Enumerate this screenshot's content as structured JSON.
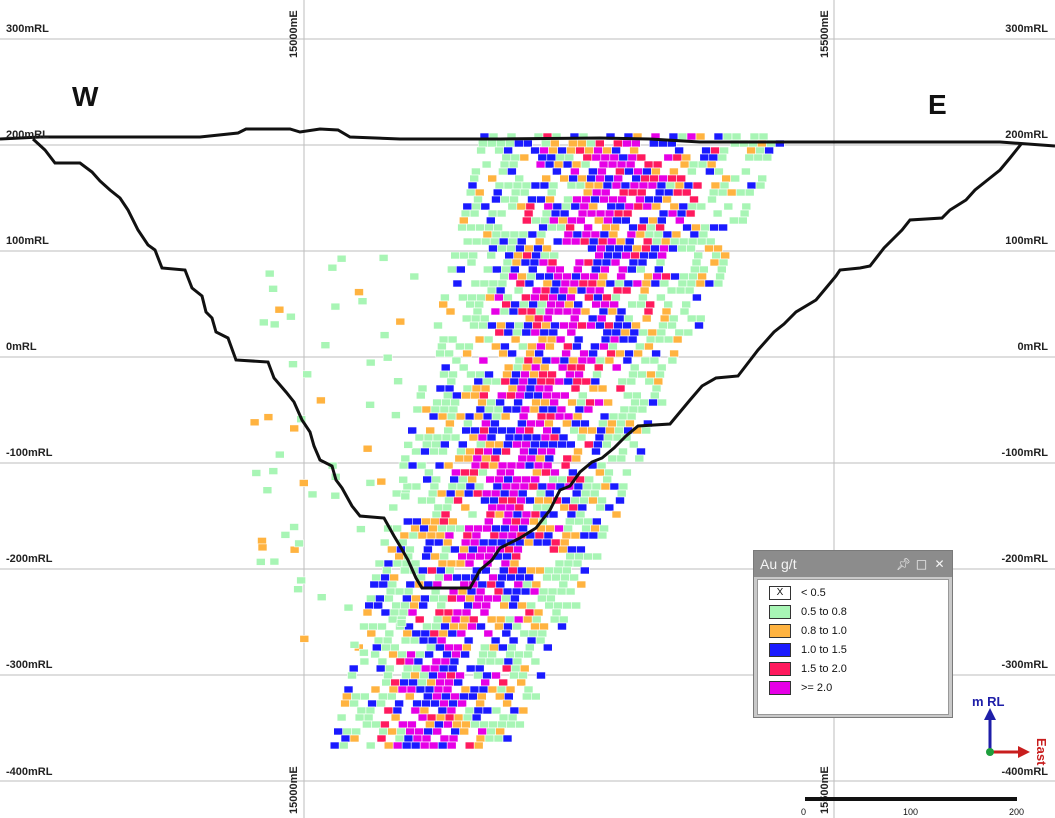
{
  "labels": {
    "west": "W",
    "east": "E",
    "rl_left": [
      "300mRL",
      "200mRL",
      "100mRL",
      "0mRL",
      "-100mRL",
      "-200mRL",
      "-300mRL",
      "-400mRL"
    ],
    "rl_right": [
      "300mRL",
      "200mRL",
      "100mRL",
      "0mRL",
      "-100mRL",
      "-200mRL",
      "-300mRL",
      "-400mRL"
    ],
    "easting_top": [
      "15000mE",
      "15500mE"
    ],
    "easting_bottom": [
      "15000mE",
      "15500mE"
    ]
  },
  "legend": {
    "title": "Au g/t",
    "pin_icon": "pin-icon",
    "maximize_icon": "maximize-icon",
    "close_icon": "close-icon",
    "items": [
      {
        "swatch": "X",
        "label": "< 0.5",
        "color": "#ffffff"
      },
      {
        "swatch": "",
        "label": "0.5 to 0.8",
        "color": "#a8f5b5"
      },
      {
        "swatch": "",
        "label": "0.8 to 1.0",
        "color": "#ffb340"
      },
      {
        "swatch": "",
        "label": "1.0 to 1.5",
        "color": "#1a1aff"
      },
      {
        "swatch": "",
        "label": "1.5 to 2.0",
        "color": "#ff1a5e"
      },
      {
        "swatch": "",
        "label": ">= 2.0",
        "color": "#e600e6"
      }
    ]
  },
  "axes": {
    "vertical_label": "m RL",
    "horizontal_label": "East",
    "vertical_color": "#1e1ea8",
    "horizontal_color": "#c81e1e",
    "origin_color": "#1e9e3c"
  },
  "scale_bar": {
    "ticks": [
      "0",
      "100",
      "200"
    ]
  }
}
